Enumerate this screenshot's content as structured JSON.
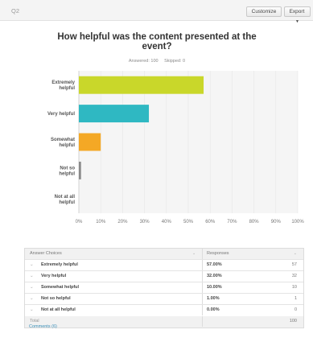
{
  "header": {
    "question_number": "Q2",
    "customize_label": "Customize",
    "export_label": "Export"
  },
  "question": {
    "title": "How helpful was the content presented at the event?",
    "answered": "Answered: 100",
    "skipped": "Skipped: 0"
  },
  "colors": {
    "extremely_helpful": "#c9d72a",
    "very_helpful": "#2fb8c2",
    "somewhat_helpful": "#f4a825",
    "not_so_helpful": "#8a8a8a",
    "not_at_all_helpful": "#cccccc"
  },
  "chart_data": {
    "type": "bar",
    "orientation": "horizontal",
    "categories": [
      "Extremely helpful",
      "Very helpful",
      "Somewhat helpful",
      "Not so helpful",
      "Not at all helpful"
    ],
    "values": [
      57,
      32,
      10,
      1,
      0
    ],
    "xlim": [
      0,
      100
    ],
    "xticks": [
      "0%",
      "10%",
      "20%",
      "30%",
      "40%",
      "50%",
      "60%",
      "70%",
      "80%",
      "90%",
      "100%"
    ],
    "grid": true,
    "legend": "none"
  },
  "table": {
    "headers": [
      "Answer Choices",
      "Responses"
    ],
    "rows": [
      {
        "choice": "Extremely helpful",
        "percent": "57.00%",
        "count": "57"
      },
      {
        "choice": "Very helpful",
        "percent": "32.00%",
        "count": "32"
      },
      {
        "choice": "Somewhat helpful",
        "percent": "10.00%",
        "count": "10"
      },
      {
        "choice": "Not so helpful",
        "percent": "1.00%",
        "count": "1"
      },
      {
        "choice": "Not at all helpful",
        "percent": "0.00%",
        "count": "0"
      }
    ],
    "total_label": "Total",
    "total_value": "100"
  },
  "footer": {
    "comments_label": "Comments (6)"
  }
}
